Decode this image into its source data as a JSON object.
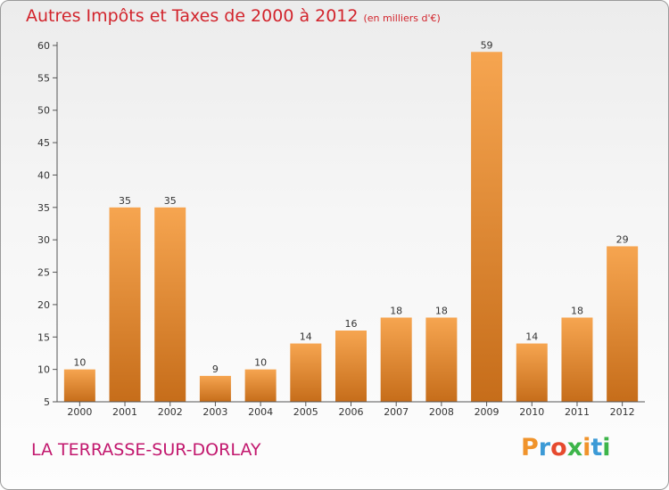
{
  "header": {
    "title": "Autres Impôts et Taxes de 2000 à 2012",
    "unit": "(en milliers d'€)"
  },
  "footer": {
    "commune": "LA TERRASSE-SUR-DORLAY",
    "logo": [
      "P",
      "r",
      "o",
      "x",
      "i",
      "t",
      "i"
    ]
  },
  "colors": {
    "title": "#d2242c",
    "commune": "#c2186e",
    "bar_top": "#f6a550",
    "bar_bottom": "#c66d1a",
    "logo": [
      "#f0932b",
      "#3c9ad6",
      "#e64a2e",
      "#3db54a",
      "#f0932b",
      "#3c9ad6",
      "#3db54a"
    ]
  },
  "chart_data": {
    "type": "bar",
    "categories": [
      "2000",
      "2001",
      "2002",
      "2003",
      "2004",
      "2005",
      "2006",
      "2007",
      "2008",
      "2009",
      "2010",
      "2011",
      "2012"
    ],
    "values": [
      10,
      35,
      35,
      9,
      10,
      14,
      16,
      18,
      18,
      59,
      14,
      18,
      29
    ],
    "ylim": [
      5,
      60
    ],
    "yticks": [
      5,
      10,
      15,
      20,
      25,
      30,
      35,
      40,
      45,
      50,
      55,
      60
    ],
    "grid": false,
    "data_labels": true
  }
}
